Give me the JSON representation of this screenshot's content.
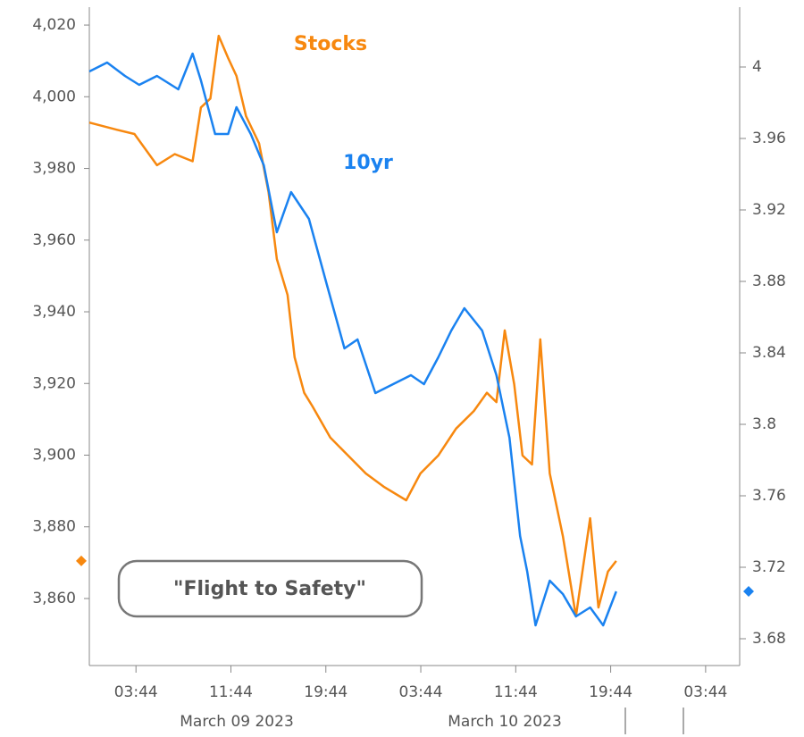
{
  "chart_data": {
    "type": "line",
    "annotations": [
      "Stocks",
      "10yr",
      "\"Flight to Safety\""
    ],
    "date_labels": [
      "March 09 2023",
      "March 10 2023"
    ],
    "xlim": [
      -0.2,
      54.6
    ],
    "xticks": [
      {
        "value": 3.73,
        "label": "03:44"
      },
      {
        "value": 11.73,
        "label": "11:44"
      },
      {
        "value": 19.73,
        "label": "19:44"
      },
      {
        "value": 27.73,
        "label": "03:44"
      },
      {
        "value": 35.73,
        "label": "11:44"
      },
      {
        "value": 43.73,
        "label": "19:44"
      },
      {
        "value": 51.73,
        "label": "03:44"
      }
    ],
    "ylim": [
      3841.3,
      4025
    ],
    "yticks": [
      {
        "value": 3860,
        "label": "3,860"
      },
      {
        "value": 3880,
        "label": "3,880"
      },
      {
        "value": 3900,
        "label": "3,900"
      },
      {
        "value": 3920,
        "label": "3,920"
      },
      {
        "value": 3940,
        "label": "3,940"
      },
      {
        "value": 3960,
        "label": "3,960"
      },
      {
        "value": 3980,
        "label": "3,980"
      },
      {
        "value": 4000,
        "label": "4,000"
      },
      {
        "value": 4020,
        "label": "4,020"
      }
    ],
    "y2lim": [
      3.665,
      4.0335
    ],
    "y2ticks": [
      3.68,
      3.72,
      3.76,
      3.8,
      3.84,
      3.88,
      3.92,
      3.96,
      4
    ],
    "series": [
      {
        "name": "Stocks",
        "color": "#f7880f",
        "x": [
          -0.2,
          2.1,
          3.6,
          5.5,
          7.0,
          8.5,
          9.2,
          10.0,
          10.7,
          11.5,
          12.2,
          13.0,
          14.1,
          14.9,
          15.6,
          16.5,
          17.1,
          17.9,
          18.6,
          20.1,
          21.6,
          23.1,
          24.6,
          26.5,
          27.7,
          29.2,
          30.7,
          32.2,
          33.3,
          34.1,
          34.8,
          35.6,
          36.3,
          37.1,
          37.8,
          38.6,
          39.7,
          40.8,
          42.0,
          42.7,
          43.5,
          44.2
        ],
        "values": [
          3992.8,
          3990.8,
          3989.6,
          3980.9,
          3984,
          3982,
          3997,
          3999.5,
          4017,
          4010.8,
          4005.8,
          3994.6,
          3987,
          3973.4,
          3954.7,
          3944.7,
          3927.3,
          3917.4,
          3913.6,
          3904.9,
          3899.9,
          3894.9,
          3891.2,
          3887.4,
          3894.9,
          3899.9,
          3907.4,
          3912.3,
          3917.4,
          3914.8,
          3934.8,
          3919.8,
          3899.9,
          3897.4,
          3932.3,
          3894.9,
          3877.4,
          3855,
          3882.4,
          3857.5,
          3867.5,
          3870.5
        ]
      },
      {
        "name": "10yr",
        "color": "#1a82f0",
        "axis": "y2",
        "x": [
          -0.2,
          1.3,
          2.8,
          4.0,
          5.5,
          7.3,
          8.5,
          9.2,
          10.4,
          11.5,
          12.2,
          13.4,
          14.5,
          15.6,
          16.8,
          18.3,
          19.8,
          21.3,
          22.4,
          23.9,
          25.4,
          26.9,
          28.0,
          29.2,
          30.3,
          31.4,
          32.9,
          34.1,
          35.2,
          36.1,
          36.7,
          37.4,
          38.6,
          39.7,
          40.8,
          42.0,
          43.1,
          44.2
        ],
        "values": [
          3.9975,
          4.0025,
          3.995,
          3.99,
          3.995,
          3.9875,
          4.0075,
          3.9925,
          3.9625,
          3.9625,
          3.9775,
          3.9625,
          3.945,
          3.9075,
          3.93,
          3.915,
          3.8785,
          3.8425,
          3.8475,
          3.8175,
          3.8225,
          3.8275,
          3.8225,
          3.8375,
          3.8525,
          3.865,
          3.8525,
          3.8275,
          3.7925,
          3.7375,
          3.7175,
          3.6875,
          3.7125,
          3.705,
          3.6925,
          3.6975,
          3.6875,
          3.7065
        ]
      }
    ]
  }
}
